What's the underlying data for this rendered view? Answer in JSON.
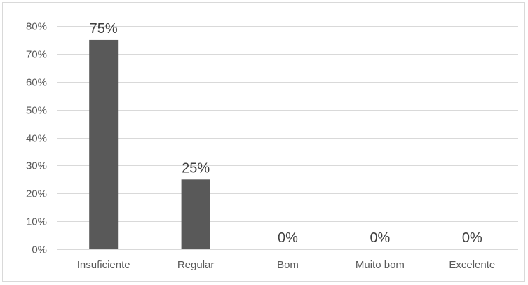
{
  "chart_data": {
    "type": "bar",
    "categories": [
      "Insuficiente",
      "Regular",
      "Bom",
      "Muito bom",
      "Excelente"
    ],
    "values": [
      75,
      25,
      0,
      0,
      0
    ],
    "data_labels": [
      "75%",
      "25%",
      "0%",
      "0%",
      "0%"
    ],
    "title": "",
    "xlabel": "",
    "ylabel": "",
    "ylim": [
      0,
      80
    ],
    "yticks": [
      0,
      10,
      20,
      30,
      40,
      50,
      60,
      70,
      80
    ],
    "ytick_labels": [
      "0%",
      "10%",
      "20%",
      "30%",
      "40%",
      "50%",
      "60%",
      "70%",
      "80%"
    ],
    "grid": true,
    "legend": "none",
    "bar_color": "#595959",
    "grid_color": "#d9d9d9"
  }
}
